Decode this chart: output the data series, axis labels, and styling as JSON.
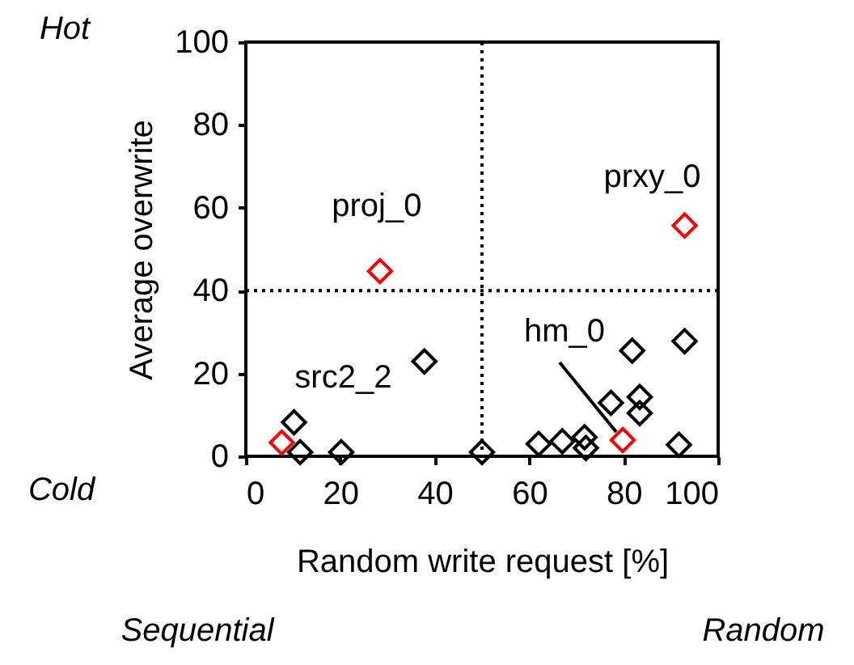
{
  "chart_data": {
    "type": "scatter",
    "xlabel": "Random write request [%]",
    "ylabel": "Average overwrite",
    "x": [
      10.2,
      11.5,
      20.2,
      37.8,
      50,
      62,
      67,
      71.7,
      72,
      77.3,
      81.8,
      83.4,
      83.4,
      92.9,
      91.7
    ],
    "series": [
      {
        "color": "#000000",
        "values": [
          8.2,
          1,
          1,
          22.9,
          1,
          3,
          3.6,
          4.6,
          2,
          12.9,
          25.5,
          14.3,
          10.4,
          27.8,
          2.8
        ]
      },
      {
        "color": "#ff0000",
        "x": [
          7.6,
          28.4,
          92.9,
          79.8
        ],
        "values": [
          3.3,
          44.7,
          55.7,
          3.9
        ]
      }
    ],
    "xlim": [
      0,
      100
    ],
    "xticks": [
      0,
      20,
      40,
      60,
      80,
      100
    ],
    "ylim": [
      0,
      100
    ],
    "yticks": [
      0,
      20,
      40,
      60,
      80,
      100
    ],
    "ref_lines": [
      {
        "axis": "x",
        "value": 50,
        "color": "#000000",
        "line_style": "dotted"
      },
      {
        "axis": "y",
        "value": 40,
        "color": "#000000",
        "line_style": "dotted"
      }
    ],
    "annotations": [
      {
        "text": "proj_0",
        "x": 28.4,
        "y": 44.7
      },
      {
        "text": "prxy_0",
        "x": 92.9,
        "y": 55.7
      },
      {
        "text": "src2_2",
        "x": 7.6,
        "y": 3.3
      },
      {
        "text": "hm_0",
        "x": 79.8,
        "y": 3.9
      },
      "Hot",
      "Cold",
      "Sequential",
      "Random"
    ],
    "marker": "diamond",
    "grid": false
  }
}
